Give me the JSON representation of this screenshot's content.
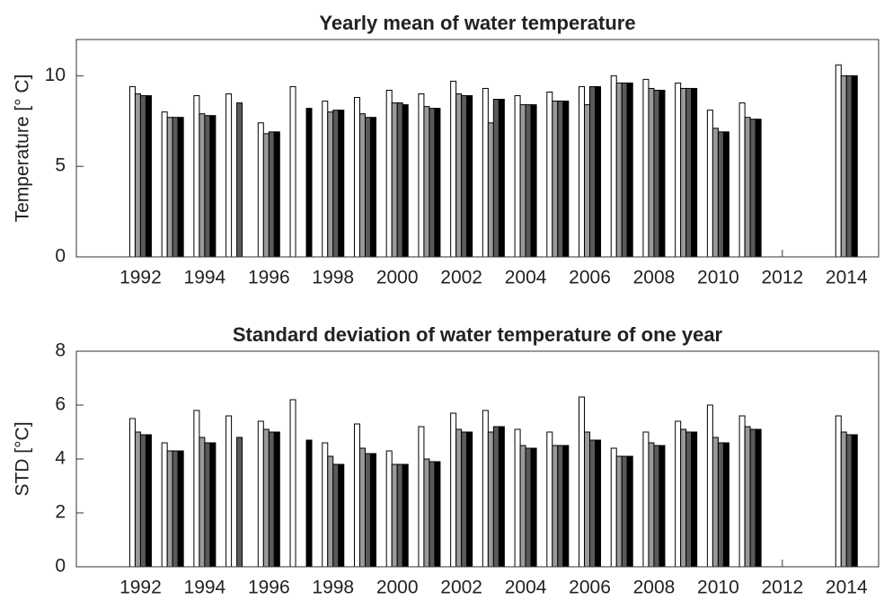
{
  "chart_data": [
    {
      "type": "bar",
      "title": "Yearly mean of water temperature",
      "y_label": "Temperature [° C]",
      "x": [
        1992,
        1993,
        1994,
        1995,
        1996,
        1997,
        1998,
        1999,
        2000,
        2001,
        2002,
        2003,
        2004,
        2005,
        2006,
        2007,
        2008,
        2009,
        2010,
        2011,
        2012,
        2013,
        2014
      ],
      "xlim": [
        1990,
        2015
      ],
      "xticks": [
        1992,
        1994,
        1996,
        1998,
        2000,
        2002,
        2004,
        2006,
        2008,
        2010,
        2012,
        2014
      ],
      "ylim": [
        0,
        12
      ],
      "yticks": [
        0,
        5,
        10
      ],
      "series": [
        {
          "color": "#ffffff",
          "values": [
            9.4,
            8.0,
            8.9,
            9.0,
            7.4,
            9.4,
            8.6,
            8.8,
            9.2,
            9.0,
            9.7,
            9.3,
            8.9,
            9.1,
            9.4,
            10.0,
            9.8,
            9.6,
            8.1,
            8.5,
            null,
            null,
            10.6
          ]
        },
        {
          "color": "#9a9a9a",
          "values": [
            9.0,
            7.7,
            7.9,
            null,
            6.8,
            null,
            8.0,
            7.9,
            8.5,
            8.3,
            9.0,
            7.4,
            8.4,
            8.6,
            8.4,
            9.6,
            9.3,
            9.3,
            7.1,
            7.7,
            null,
            null,
            10.0
          ]
        },
        {
          "color": "#5a5a5a",
          "values": [
            8.9,
            7.7,
            7.8,
            8.5,
            6.9,
            null,
            8.1,
            7.7,
            8.5,
            8.2,
            8.9,
            8.7,
            8.4,
            8.6,
            9.4,
            9.6,
            9.2,
            9.3,
            6.9,
            7.6,
            null,
            null,
            10.0
          ]
        },
        {
          "color": "#000000",
          "values": [
            8.9,
            7.7,
            7.8,
            null,
            6.9,
            8.2,
            8.1,
            7.7,
            8.4,
            8.2,
            8.9,
            8.7,
            8.4,
            8.6,
            9.4,
            9.6,
            9.2,
            9.3,
            6.9,
            7.6,
            null,
            null,
            10.0
          ]
        }
      ]
    },
    {
      "type": "bar",
      "title": "Standard deviation of water temperature of one year",
      "y_label": "STD [°C]",
      "x": [
        1992,
        1993,
        1994,
        1995,
        1996,
        1997,
        1998,
        1999,
        2000,
        2001,
        2002,
        2003,
        2004,
        2005,
        2006,
        2007,
        2008,
        2009,
        2010,
        2011,
        2012,
        2013,
        2014
      ],
      "xlim": [
        1990,
        2015
      ],
      "xticks": [
        1992,
        1994,
        1996,
        1998,
        2000,
        2002,
        2004,
        2006,
        2008,
        2010,
        2012,
        2014
      ],
      "ylim": [
        0,
        8
      ],
      "yticks": [
        0,
        2,
        4,
        6,
        8
      ],
      "series": [
        {
          "color": "#ffffff",
          "values": [
            5.5,
            4.6,
            5.8,
            5.6,
            5.4,
            6.2,
            4.6,
            5.3,
            4.3,
            5.2,
            5.7,
            5.8,
            5.1,
            5.0,
            6.3,
            4.4,
            5.0,
            5.4,
            6.0,
            5.6,
            null,
            null,
            5.6
          ]
        },
        {
          "color": "#9a9a9a",
          "values": [
            5.0,
            4.3,
            4.8,
            null,
            5.1,
            null,
            4.1,
            4.4,
            3.8,
            4.0,
            5.1,
            5.0,
            4.5,
            4.5,
            5.0,
            4.1,
            4.6,
            5.1,
            4.8,
            5.2,
            null,
            null,
            5.0
          ]
        },
        {
          "color": "#5a5a5a",
          "values": [
            4.9,
            4.3,
            4.6,
            4.8,
            5.0,
            null,
            3.8,
            4.2,
            3.8,
            3.9,
            5.0,
            5.2,
            4.4,
            4.5,
            4.7,
            4.1,
            4.5,
            5.0,
            4.6,
            5.1,
            null,
            null,
            4.9
          ]
        },
        {
          "color": "#000000",
          "values": [
            4.9,
            4.3,
            4.6,
            null,
            5.0,
            4.7,
            3.8,
            4.2,
            3.8,
            3.9,
            5.0,
            5.2,
            4.4,
            4.5,
            4.7,
            4.1,
            4.5,
            5.0,
            4.6,
            5.1,
            null,
            null,
            4.9
          ]
        }
      ]
    }
  ]
}
